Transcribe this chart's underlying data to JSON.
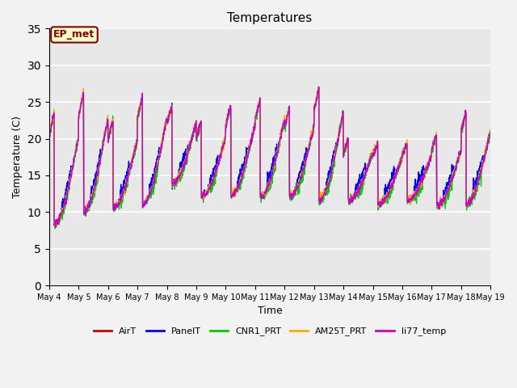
{
  "title": "Temperatures",
  "xlabel": "Time",
  "ylabel": "Temperature (C)",
  "ylim": [
    0,
    35
  ],
  "yticks": [
    0,
    5,
    10,
    15,
    20,
    25,
    30,
    35
  ],
  "series_colors": {
    "AirT": "#cc0000",
    "PanelT": "#0000ff",
    "CNR1_PRT": "#00cc00",
    "AM25T_PRT": "#ffaa00",
    "li77_temp": "#cc00cc"
  },
  "series_order": [
    "AirT",
    "PanelT",
    "CNR1_PRT",
    "AM25T_PRT",
    "li77_temp"
  ],
  "annotation_text": "EP_met",
  "annotation_color": "#880000",
  "annotation_bg": "#ffffcc",
  "num_days": 15,
  "start_day": 4,
  "points_per_day": 144,
  "plot_bg": "#e8e8e8",
  "fig_bg": "#f2f2f2",
  "grid_color": "#ffffff"
}
